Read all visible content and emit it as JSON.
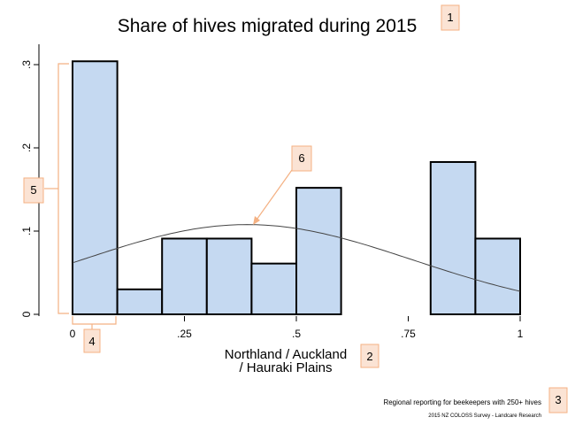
{
  "chart_data": {
    "type": "histogram",
    "title": "Share of hives migrated during 2015",
    "xlabel_lines": [
      "Northland / Auckland",
      "/ Hauraki Plains"
    ],
    "ylabel": "",
    "xlim": [
      0,
      1
    ],
    "ylim": [
      0,
      0.3
    ],
    "x_ticks": [
      0,
      0.25,
      0.5,
      0.75,
      1
    ],
    "x_tick_labels": [
      "0",
      ".25",
      ".5",
      ".75",
      "1"
    ],
    "y_ticks": [
      0,
      0.1,
      0.2,
      0.3
    ],
    "y_tick_labels": [
      "0",
      ".1",
      ".2",
      ".3"
    ],
    "bin_width": 0.1,
    "bins": [
      {
        "start": 0.0,
        "end": 0.1,
        "value": 0.304
      },
      {
        "start": 0.1,
        "end": 0.2,
        "value": 0.03
      },
      {
        "start": 0.2,
        "end": 0.3,
        "value": 0.091
      },
      {
        "start": 0.3,
        "end": 0.4,
        "value": 0.091
      },
      {
        "start": 0.4,
        "end": 0.5,
        "value": 0.061
      },
      {
        "start": 0.5,
        "end": 0.6,
        "value": 0.152
      },
      {
        "start": 0.8,
        "end": 0.9,
        "value": 0.183
      },
      {
        "start": 0.9,
        "end": 1.0,
        "value": 0.091
      }
    ],
    "normal_curve": {
      "mean": 0.39,
      "sd": 0.37,
      "scale": 0.1
    },
    "notes": [
      "Regional reporting for beekeepers with 250+ hives",
      "2015 NZ COLOSS Survey - Landcare Research"
    ],
    "callouts": [
      "1",
      "2",
      "3",
      "4",
      "5",
      "6"
    ],
    "colors": {
      "bar_fill": "#c5d9f1",
      "bar_edge": "#000000",
      "curve": "#444444",
      "callout": "#f4b183"
    }
  }
}
